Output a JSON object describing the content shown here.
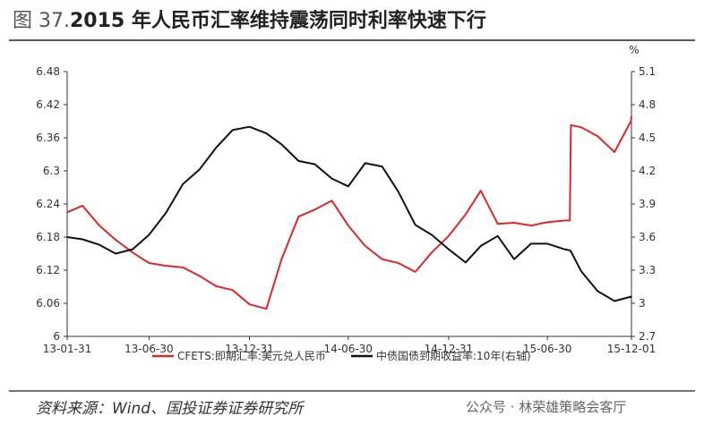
{
  "chart_data": {
    "type": "line",
    "figure_label": "图 37.",
    "title": "2015 年人民币汇率维持震荡同时利率快速下行",
    "y2_unit": "%",
    "source": "资料来源：Wind、国投证券证券研究所",
    "watermark": "公众号 · 林荣雄策略会客厅",
    "x": [
      "13-01-31",
      "13-02-28",
      "13-03-31",
      "13-04-30",
      "13-05-31",
      "13-06-30",
      "13-07-31",
      "13-08-31",
      "13-09-30",
      "13-10-31",
      "13-11-30",
      "13-12-31",
      "14-01-31",
      "14-02-28",
      "14-03-31",
      "14-04-30",
      "14-05-31",
      "14-06-30",
      "14-07-31",
      "14-08-31",
      "14-09-30",
      "14-10-31",
      "14-11-30",
      "14-12-31",
      "15-01-31",
      "15-02-28",
      "15-03-31",
      "15-04-30",
      "15-05-31",
      "15-06-30",
      "15-07-31",
      "15-08-10",
      "15-08-12",
      "15-08-31",
      "15-09-30",
      "15-10-31",
      "15-11-30",
      "15-12-01"
    ],
    "xlim": [
      "13-01-31",
      "15-12-01"
    ],
    "xticks": [
      "13-01-31",
      "13-06-30",
      "13-12-31",
      "14-06-30",
      "14-12-31",
      "15-06-30",
      "15-12-01"
    ],
    "ylim": [
      6,
      6.48
    ],
    "yticks": [
      6,
      6.06,
      6.12,
      6.18,
      6.24,
      6.3,
      6.36,
      6.42,
      6.48
    ],
    "y2lim": [
      2.7,
      5.1
    ],
    "y2ticks": [
      {
        "value": 2.7,
        "label": "2.7"
      },
      {
        "value": 3,
        "label": "3"
      },
      {
        "value": 3.3,
        "label": "3.3"
      },
      {
        "value": 3.6,
        "label": "3.6"
      },
      {
        "value": 3.9,
        "label": "3.9"
      },
      {
        "value": 4.2,
        "label": "4.2"
      },
      {
        "value": 4.5,
        "label": "4.5"
      },
      {
        "value": 4.8,
        "label": "4.8"
      },
      {
        "value": 5.1,
        "label": "5.1"
      }
    ],
    "grid": false,
    "legend": "bottom",
    "series": [
      {
        "name": "CFETS:即期汇率:美元兑人民币",
        "color": "#e0262b",
        "values": [
          6.225,
          6.237,
          6.201,
          6.175,
          6.152,
          6.133,
          6.128,
          6.125,
          6.11,
          6.091,
          6.084,
          6.058,
          6.05,
          6.14,
          6.217,
          6.23,
          6.246,
          6.201,
          6.164,
          6.14,
          6.133,
          6.117,
          6.152,
          6.182,
          6.221,
          6.264,
          6.204,
          6.206,
          6.201,
          6.207,
          6.21,
          6.21,
          6.383,
          6.379,
          6.363,
          6.334,
          6.39,
          6.399
        ]
      },
      {
        "name": "中债国债到期收益率:10年(右轴)",
        "color": "#111111",
        "axis": "y2",
        "values": [
          3.6,
          3.58,
          3.53,
          3.45,
          3.49,
          3.62,
          3.82,
          4.08,
          4.21,
          4.41,
          4.57,
          4.6,
          4.54,
          4.44,
          4.29,
          4.26,
          4.13,
          4.06,
          4.27,
          4.24,
          4.01,
          3.71,
          3.62,
          3.49,
          3.37,
          3.52,
          3.61,
          3.4,
          3.54,
          3.54,
          3.49,
          3.48,
          3.47,
          3.29,
          3.11,
          3.02,
          3.06,
          3.05
        ]
      }
    ]
  }
}
